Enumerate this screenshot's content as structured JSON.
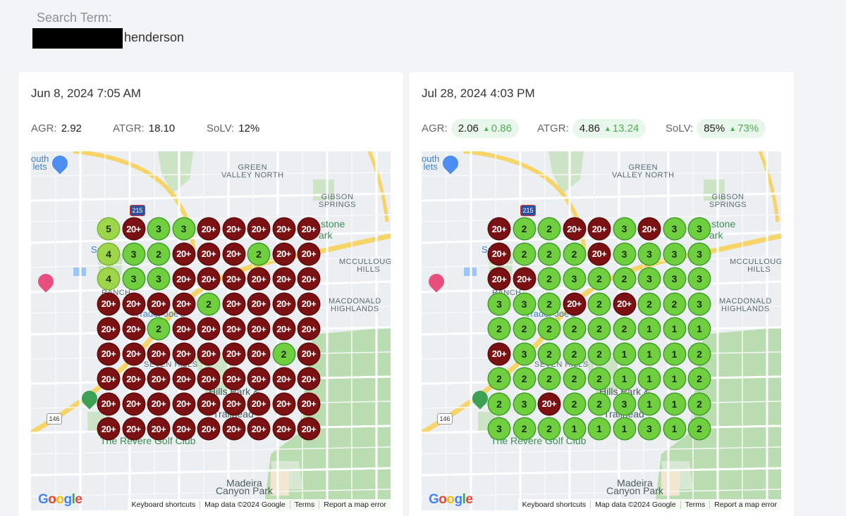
{
  "search": {
    "label": "Search Term:",
    "term": "henderson"
  },
  "map": {
    "labels": {
      "green_valley_north": "GREEN\nVALLEY NORTH",
      "gibson_springs": "GIBSON\nSPRINGS",
      "mccullough_hills": "MCCULLOUGH\nHILLS",
      "macdonald_highlands": "MACDONALD\nHIGHLANDS",
      "seven_hills": "SEVEN HILLS",
      "trader_joes": "Trader Joe's",
      "revere_golf": "The Revere Golf Club",
      "madeira": "Madeira\nCanyon Park",
      "outlets": "outh\nlets",
      "hills_park": "Hills Park &",
      "trailhead": "Trailhead",
      "stone": "stone",
      "park": "ark",
      "ranch": "RANCH",
      "sa": "Sa",
      "shield_215": "215",
      "shield_146": "146"
    },
    "footer": {
      "shortcuts": "Keyboard shortcuts",
      "mapdata": "Map data ©2024 Google",
      "terms": "Terms",
      "report": "Report a map error"
    },
    "google": [
      "G",
      "o",
      "o",
      "g",
      "l",
      "e"
    ]
  },
  "reports": [
    {
      "date": "Jun 8, 2024 7:05 AM",
      "agr": {
        "label": "AGR:",
        "value": "2.92",
        "delta": ""
      },
      "atgr": {
        "label": "ATGR:",
        "value": "18.10",
        "delta": ""
      },
      "solv": {
        "label": "SoLV:",
        "value": "12%",
        "delta": ""
      },
      "grid": [
        [
          "5",
          "20+",
          "3",
          "3",
          "20+",
          "20+",
          "20+",
          "20+",
          "20+"
        ],
        [
          "4",
          "3",
          "2",
          "20+",
          "20+",
          "20+",
          "2",
          "20+",
          "20+"
        ],
        [
          "4",
          "3",
          "3",
          "20+",
          "20+",
          "20+",
          "20+",
          "20+",
          "20+"
        ],
        [
          "20+",
          "20+",
          "20+",
          "20+",
          "2",
          "20+",
          "20+",
          "20+",
          "20+"
        ],
        [
          "20+",
          "20+",
          "2",
          "20+",
          "20+",
          "20+",
          "20+",
          "20+",
          "20+"
        ],
        [
          "20+",
          "20+",
          "20+",
          "20+",
          "20+",
          "20+",
          "20+",
          "2",
          "20+"
        ],
        [
          "20+",
          "20+",
          "20+",
          "20+",
          "20+",
          "20+",
          "20+",
          "20+",
          "20+"
        ],
        [
          "20+",
          "20+",
          "20+",
          "20+",
          "20+",
          "20+",
          "20+",
          "20+",
          "20+"
        ],
        [
          "20+",
          "20+",
          "20+",
          "20+",
          "20+",
          "20+",
          "20+",
          "20+",
          "20+"
        ]
      ]
    },
    {
      "date": "Jul 28, 2024 4:03 PM",
      "agr": {
        "label": "AGR:",
        "value": "2.06",
        "delta": "0.86"
      },
      "atgr": {
        "label": "ATGR:",
        "value": "4.86",
        "delta": "13.24"
      },
      "solv": {
        "label": "SoLV:",
        "value": "85%",
        "delta": "73%"
      },
      "grid": [
        [
          "20+",
          "2",
          "2",
          "20+",
          "20+",
          "3",
          "20+",
          "3",
          "3"
        ],
        [
          "20+",
          "2",
          "2",
          "2",
          "20+",
          "3",
          "3",
          "3",
          "3"
        ],
        [
          "20+",
          "20+",
          "2",
          "3",
          "2",
          "2",
          "3",
          "3",
          "3"
        ],
        [
          "3",
          "3",
          "2",
          "20+",
          "2",
          "20+",
          "2",
          "2",
          "3"
        ],
        [
          "2",
          "2",
          "2",
          "2",
          "2",
          "2",
          "1",
          "1",
          "1"
        ],
        [
          "20+",
          "3",
          "2",
          "2",
          "2",
          "1",
          "1",
          "1",
          "2"
        ],
        [
          "2",
          "2",
          "2",
          "2",
          "2",
          "1",
          "1",
          "1",
          "2"
        ],
        [
          "2",
          "3",
          "20+",
          "2",
          "2",
          "3",
          "1",
          "1",
          "2"
        ],
        [
          "3",
          "2",
          "2",
          "1",
          "1",
          "1",
          "3",
          "1",
          "2"
        ]
      ]
    }
  ],
  "colors": {
    "red": "#7b1113",
    "green": "#6fcf3f",
    "lime": "#9ed64a",
    "up": "#4caf50"
  }
}
